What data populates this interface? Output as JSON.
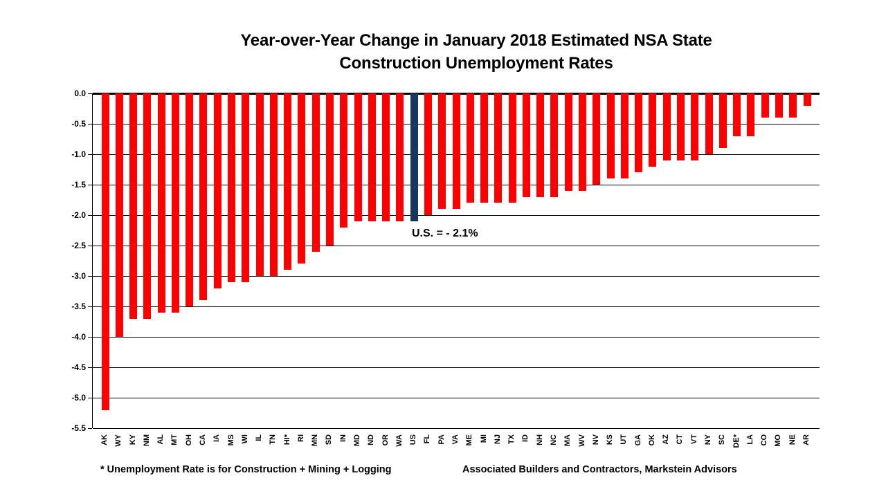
{
  "title": {
    "line1": "Year-over-Year Change in January 2018 Estimated NSA State",
    "line2": "Construction Unemployment Rates"
  },
  "annotation": "U.S. = - 2.1%",
  "footnotes": {
    "left": "* Unemployment Rate is for Construction + Mining + Logging",
    "right": "Associated Builders and Contractors, Markstein Advisors"
  },
  "colors": {
    "bar": "#ff0000",
    "highlight_bar": "#17375e",
    "grid": "#000000",
    "text": "#000000",
    "background": "#ffffff"
  },
  "chart_data": {
    "type": "bar",
    "title": "Year-over-Year Change in January 2018 Estimated NSA State Construction Unemployment Rates",
    "xlabel": "",
    "ylabel": "",
    "ylim": [
      -5.5,
      0.0
    ],
    "ytick_step": 0.5,
    "ytick_labels": [
      "0.0",
      "-0.5",
      "-1.0",
      "-1.5",
      "-2.0",
      "-2.5",
      "-3.0",
      "-3.5",
      "-4.0",
      "-4.5",
      "-5.0",
      "-5.5"
    ],
    "grid": true,
    "legend": "none",
    "highlight_category": "US",
    "annotation": "U.S. = - 2.1%",
    "categories": [
      "AK",
      "WY",
      "KY",
      "NM",
      "AL",
      "MT",
      "OH",
      "CA",
      "IA",
      "MS",
      "WI",
      "IL",
      "TN",
      "HI*",
      "RI",
      "MN",
      "SD",
      "IN",
      "MD",
      "ND",
      "OR",
      "WA",
      "US",
      "FL",
      "PA",
      "VA",
      "ME",
      "MI",
      "NJ",
      "TX",
      "ID",
      "NH",
      "NC",
      "MA",
      "WV",
      "NV",
      "KS",
      "UT",
      "GA",
      "OK",
      "AZ",
      "CT",
      "VT",
      "NY",
      "SC",
      "DE*",
      "LA",
      "CO",
      "MO",
      "NE",
      "AR"
    ],
    "values": [
      -5.2,
      -4.0,
      -3.7,
      -3.7,
      -3.6,
      -3.6,
      -3.5,
      -3.4,
      -3.2,
      -3.1,
      -3.1,
      -3.0,
      -3.0,
      -2.9,
      -2.8,
      -2.6,
      -2.5,
      -2.2,
      -2.1,
      -2.1,
      -2.1,
      -2.1,
      -2.1,
      -2.0,
      -1.9,
      -1.9,
      -1.8,
      -1.8,
      -1.8,
      -1.8,
      -1.7,
      -1.7,
      -1.7,
      -1.6,
      -1.6,
      -1.5,
      -1.4,
      -1.4,
      -1.3,
      -1.2,
      -1.1,
      -1.1,
      -1.1,
      -1.0,
      -0.9,
      -0.7,
      -0.7,
      -0.4,
      -0.4,
      -0.4,
      -0.2
    ]
  }
}
